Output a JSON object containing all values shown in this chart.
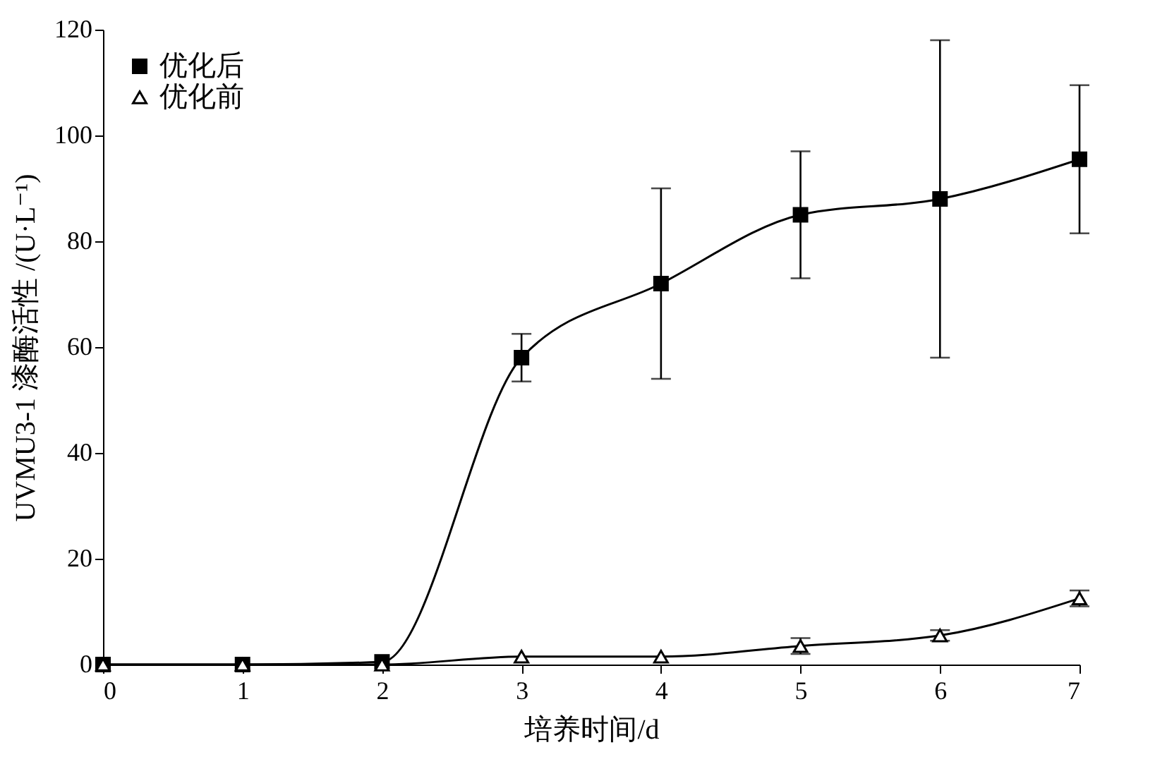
{
  "chart_data": {
    "type": "line",
    "xlabel": "培养时间/d",
    "ylabel": "UVMU3-1 漆酶活性 /(U·L⁻¹)",
    "x": [
      0,
      1,
      2,
      3,
      4,
      5,
      6,
      7
    ],
    "xlim": [
      0,
      7
    ],
    "xticks": [
      0,
      1,
      2,
      3,
      4,
      5,
      6,
      7
    ],
    "ylim": [
      0,
      120
    ],
    "yticks": [
      0,
      20,
      40,
      60,
      80,
      100,
      120
    ],
    "grid": false,
    "legend": "top left",
    "line_style": "solid",
    "series": [
      {
        "name": "优化后",
        "color": "#000000",
        "marker": "square",
        "values": [
          0,
          0,
          0.5,
          58,
          72,
          85,
          88,
          95.5
        ],
        "errors": [
          null,
          null,
          null,
          4.5,
          18,
          12,
          30,
          14
        ]
      },
      {
        "name": "优化前",
        "color": "#000000",
        "marker": "triangle",
        "values": [
          0,
          0,
          0,
          1.5,
          1.5,
          3.5,
          5.5,
          12.5
        ],
        "errors": [
          null,
          null,
          null,
          null,
          null,
          1.5,
          1,
          1.5
        ]
      }
    ]
  }
}
